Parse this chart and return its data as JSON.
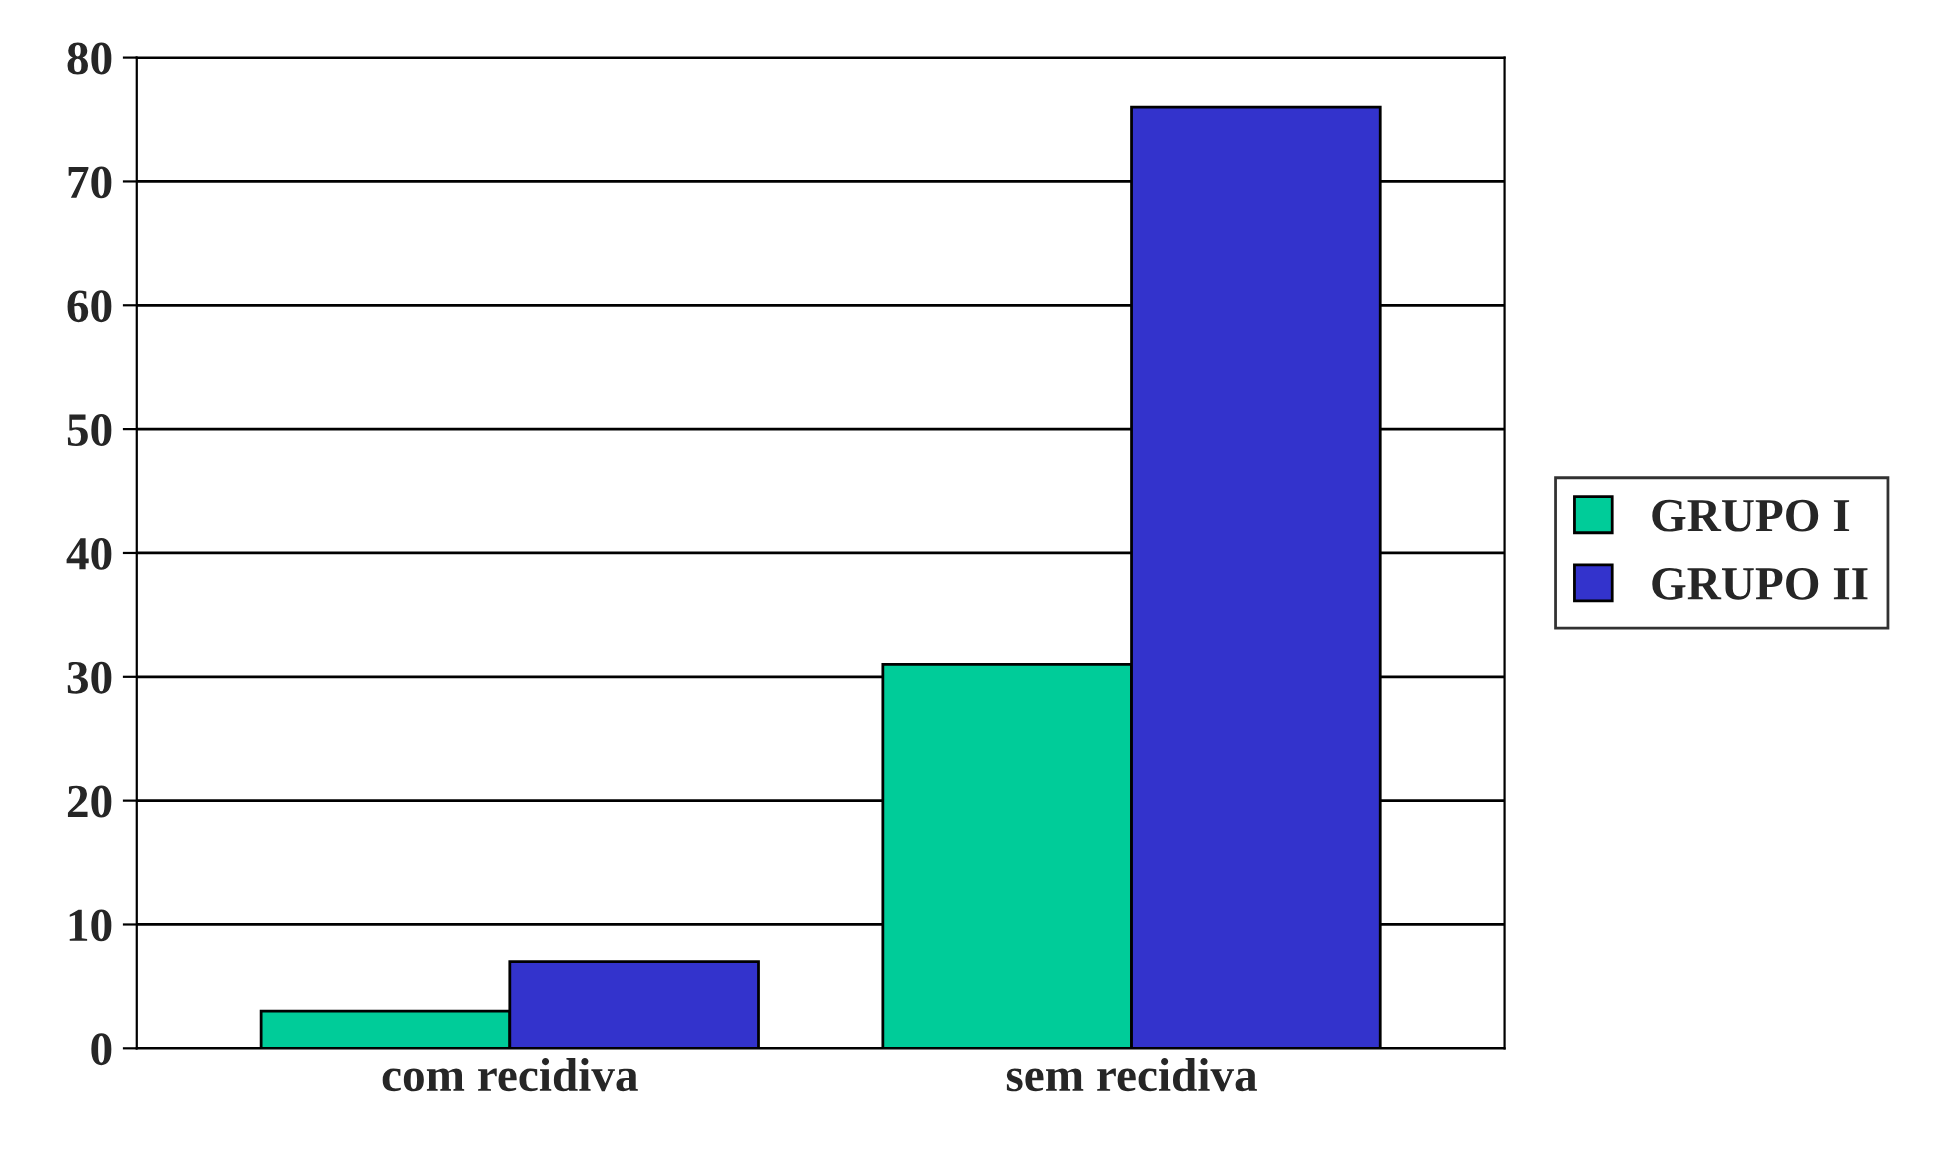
{
  "chart_data": {
    "type": "bar",
    "categories": [
      "com recidiva",
      "sem recidiva"
    ],
    "series": [
      {
        "name": "GRUPO I",
        "color": "#00cc99",
        "values": [
          3,
          31
        ]
      },
      {
        "name": "GRUPO II",
        "color": "#3333cc",
        "values": [
          7,
          76
        ]
      }
    ],
    "ylim": [
      0,
      80
    ],
    "yticks": [
      0,
      10,
      20,
      30,
      40,
      50,
      60,
      70,
      80
    ],
    "grid": "y",
    "legend": "right"
  }
}
